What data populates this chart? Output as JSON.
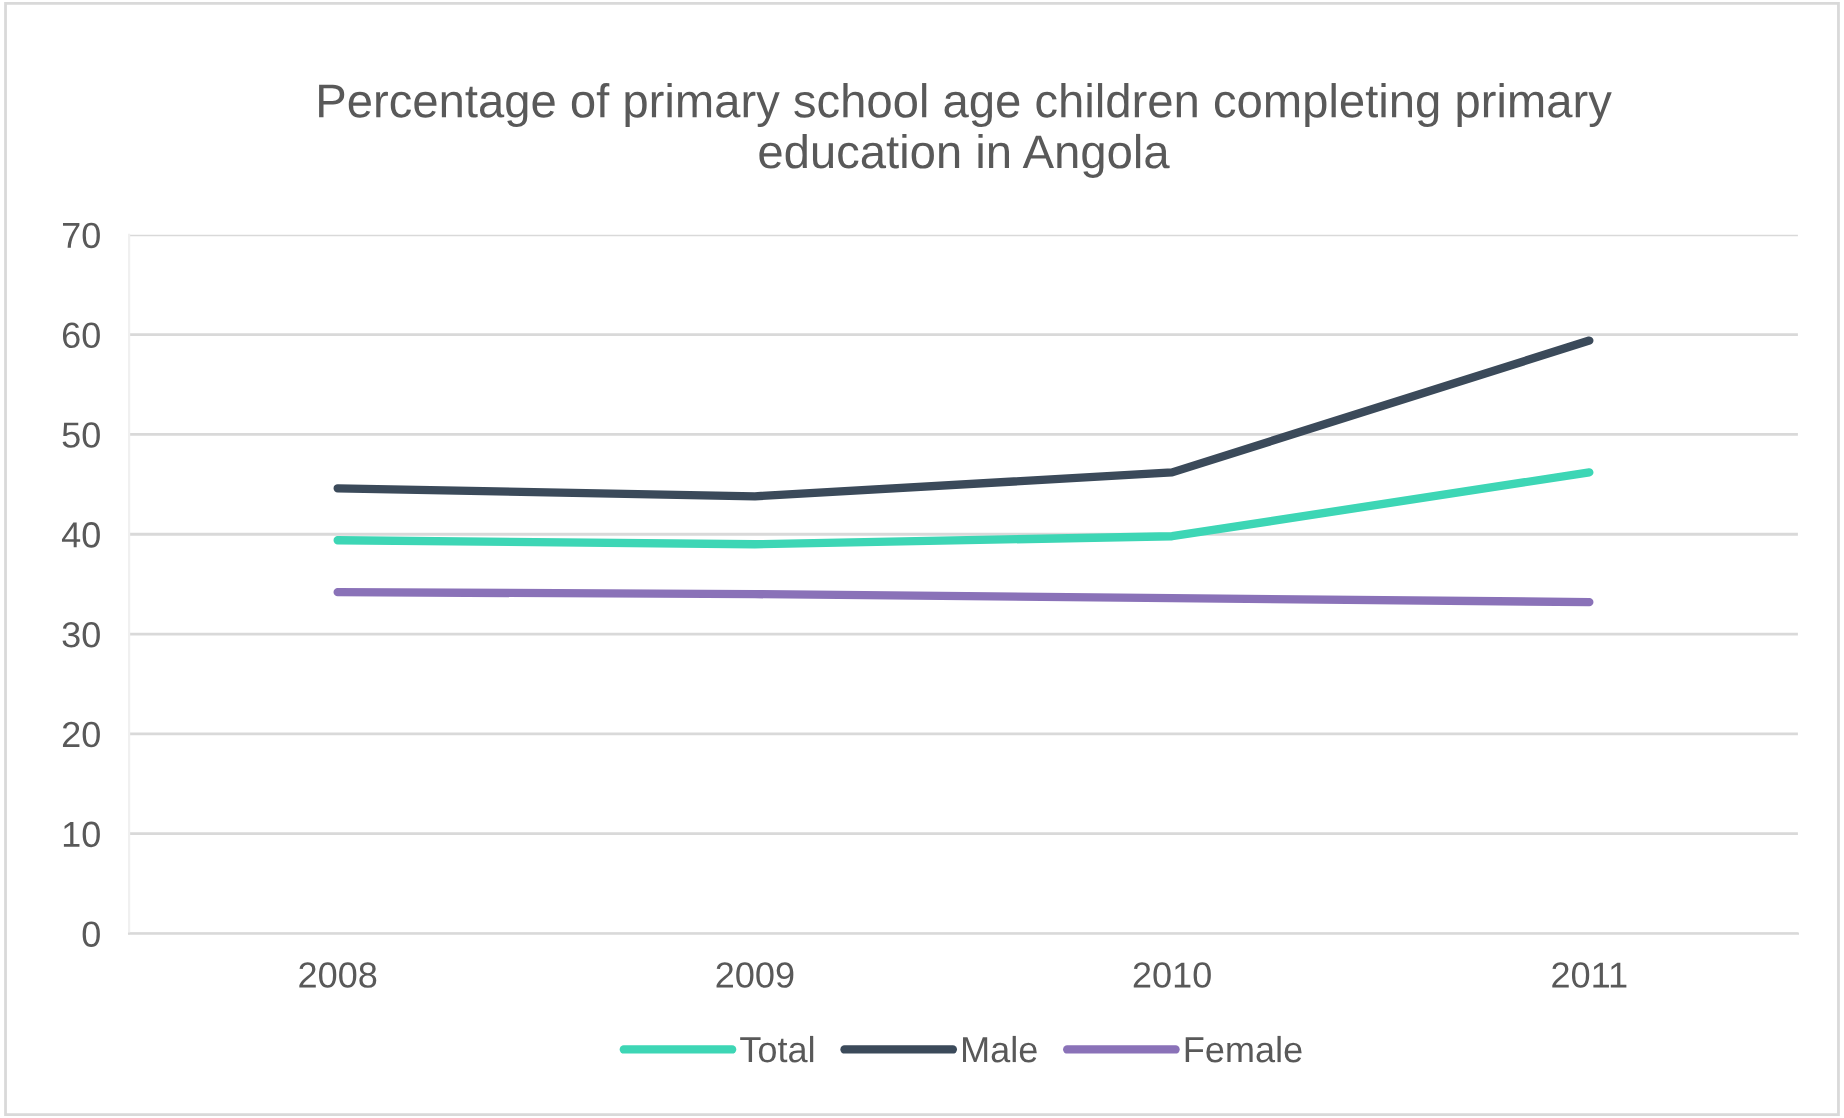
{
  "chart_data": {
    "type": "line",
    "title": "Percentage of primary school age children completing primary\neducation in Angola",
    "categories": [
      "2008",
      "2009",
      "2010",
      "2011"
    ],
    "series": [
      {
        "name": "Total",
        "color": "#3dd6b5",
        "values": [
          39.4,
          39.0,
          39.8,
          46.2
        ]
      },
      {
        "name": "Male",
        "color": "#3b4a5a",
        "values": [
          44.6,
          43.8,
          46.2,
          59.4
        ]
      },
      {
        "name": "Female",
        "color": "#8a72b8",
        "values": [
          34.2,
          34.0,
          33.6,
          33.2
        ]
      }
    ],
    "ylim": [
      0,
      70
    ],
    "yticks": [
      0,
      10,
      20,
      30,
      40,
      50,
      60,
      70
    ],
    "grid": "y",
    "legend": "bottom",
    "marker": "none",
    "line_style": "solid"
  }
}
